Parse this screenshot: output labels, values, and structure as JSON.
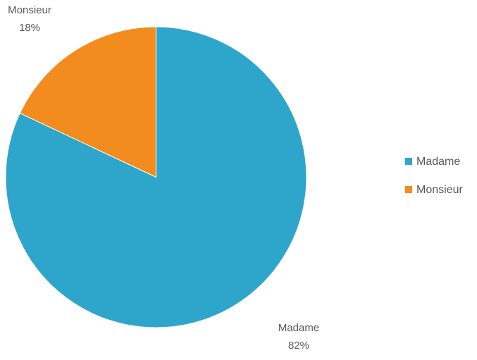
{
  "chart_data": {
    "type": "pie",
    "title": "",
    "slices": [
      {
        "label": "Madame",
        "value": 82,
        "value_label": "82%",
        "color": "#2EA6CB"
      },
      {
        "label": "Monsieur",
        "value": 18,
        "value_label": "18%",
        "color": "#F28C1E"
      }
    ],
    "start": "12 o'clock",
    "direction": "clockwise",
    "data_labels": "outside, category name and percentage",
    "legend": {
      "position": "right",
      "entries": [
        "Madame",
        "Monsieur"
      ]
    }
  }
}
